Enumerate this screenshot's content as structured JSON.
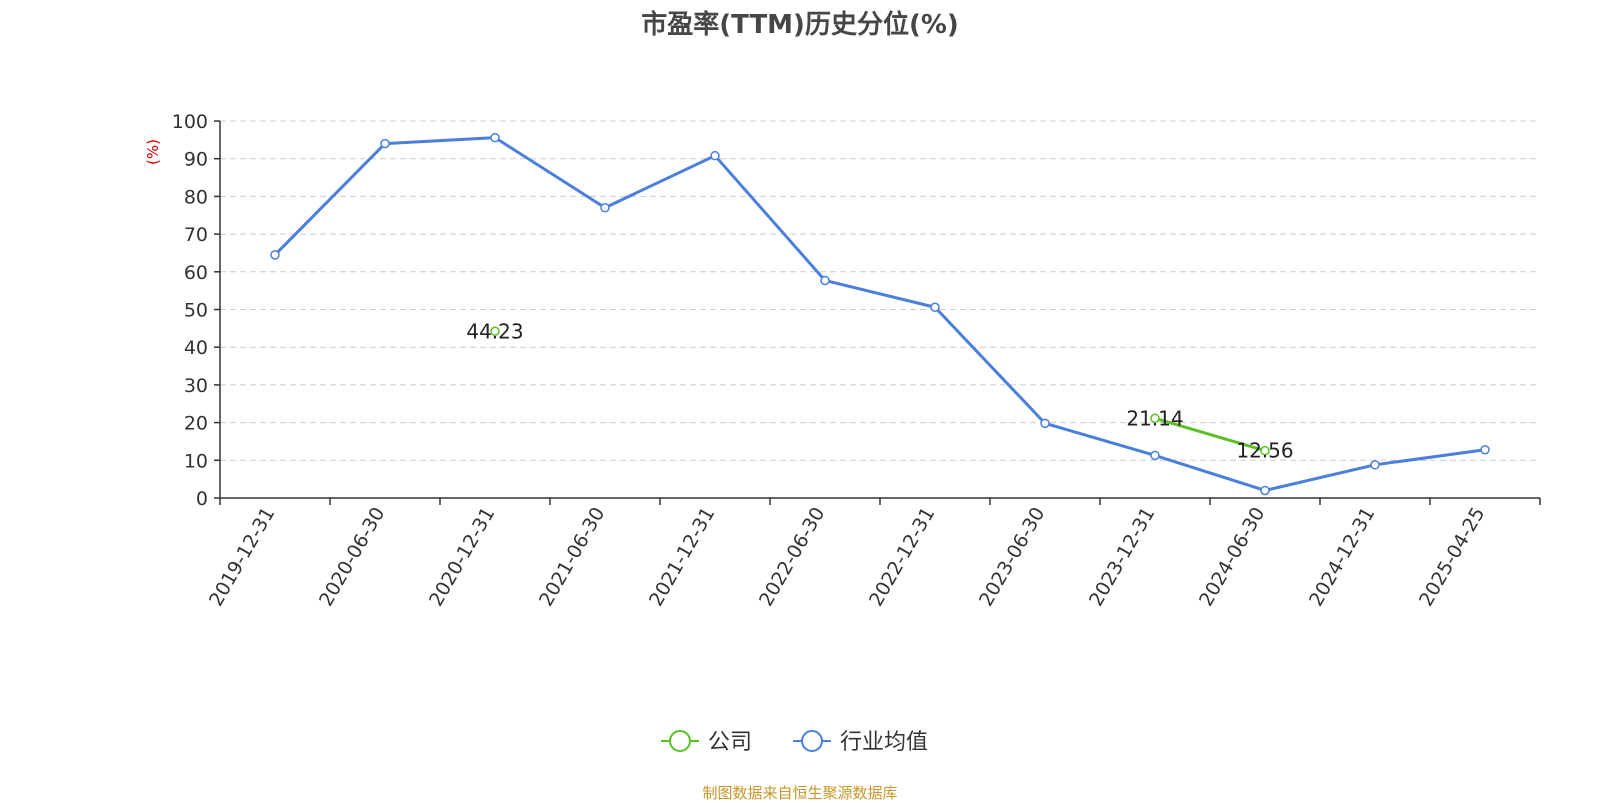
{
  "chart_data": {
    "type": "line",
    "title": "市盈率(TTM)历史分位(%)",
    "ylabel": "(%)",
    "xlabel": "",
    "ylim": [
      0,
      100
    ],
    "yticks": [
      0,
      10,
      20,
      30,
      40,
      50,
      60,
      70,
      80,
      90,
      100
    ],
    "categories": [
      "2019-12-31",
      "2020-06-30",
      "2020-12-31",
      "2021-06-30",
      "2021-12-31",
      "2022-06-30",
      "2022-12-31",
      "2023-06-30",
      "2023-12-31",
      "2024-06-30",
      "2024-12-31",
      "2025-04-25"
    ],
    "grid": true,
    "legend_position": "bottom",
    "series": [
      {
        "name": "公司",
        "color": "#5ac026",
        "values": [
          null,
          null,
          44.23,
          null,
          null,
          null,
          null,
          null,
          21.14,
          12.56,
          null,
          null
        ],
        "labels": [
          "",
          "",
          "44.23",
          "",
          "",
          "",
          "",
          "",
          "21.14",
          "12.56",
          "",
          ""
        ]
      },
      {
        "name": "行业均值",
        "color": "#4a7fdc",
        "values": [
          64.5,
          94,
          95.6,
          77,
          90.8,
          57.7,
          50.6,
          19.8,
          11.3,
          2.0,
          8.8,
          12.8
        ]
      }
    ]
  },
  "footer": {
    "source": "制图数据来自恒生聚源数据库"
  },
  "colors": {
    "title": "#464646",
    "axis_label": "#e00000",
    "grid": "#cccccc",
    "source": "#c8962b"
  }
}
